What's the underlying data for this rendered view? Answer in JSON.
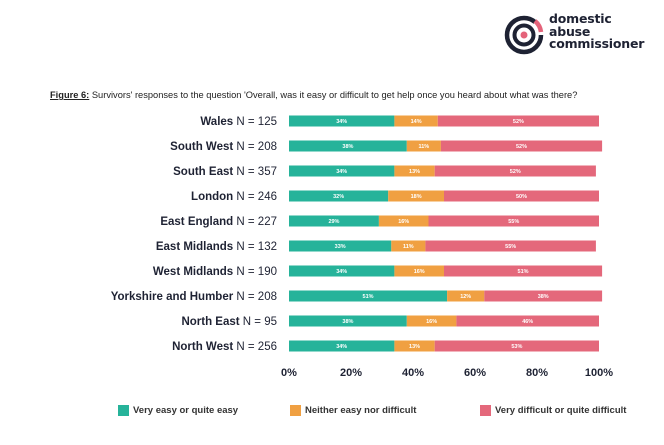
{
  "logo": {
    "line1": "domestic",
    "line2": "abuse",
    "line3": "commissioner",
    "colors": {
      "dark": "#1e2233",
      "accent": "#e4637a"
    }
  },
  "figure": {
    "label": "Figure 6:",
    "caption": "Survivors' responses to the question 'Overall, was it easy or difficult to get help once you heard about what was there?"
  },
  "chart_data": {
    "type": "bar",
    "orientation": "horizontal",
    "stacked": true,
    "categories": [
      {
        "name": "Wales",
        "n": "N = 125"
      },
      {
        "name": "South West",
        "n": "N = 208"
      },
      {
        "name": "South East",
        "n": "N = 357"
      },
      {
        "name": "London",
        "n": "N = 246"
      },
      {
        "name": "East England",
        "n": "N = 227"
      },
      {
        "name": "East Midlands",
        "n": "N = 132"
      },
      {
        "name": "West Midlands",
        "n": "N = 190"
      },
      {
        "name": "Yorkshire and Humber",
        "n": "N = 208"
      },
      {
        "name": "North East",
        "n": "N = 95"
      },
      {
        "name": "North West",
        "n": "N = 256"
      }
    ],
    "series": [
      {
        "name": "Very easy or quite easy",
        "color": "#26b39a",
        "values": [
          34,
          38,
          34,
          32,
          29,
          33,
          34,
          51,
          38,
          34
        ]
      },
      {
        "name": "Neither easy nor difficult",
        "color": "#f0a042",
        "values": [
          14,
          11,
          13,
          18,
          16,
          11,
          16,
          12,
          16,
          13
        ]
      },
      {
        "name": "Very difficult or quite difficult",
        "color": "#e4687b",
        "values": [
          52,
          52,
          52,
          50,
          55,
          55,
          51,
          38,
          46,
          53
        ]
      }
    ],
    "xlim": [
      0,
      100
    ],
    "xticks": [
      "0%",
      "20%",
      "40%",
      "60%",
      "80%",
      "100%"
    ],
    "legend_position": "bottom",
    "grid": false
  }
}
